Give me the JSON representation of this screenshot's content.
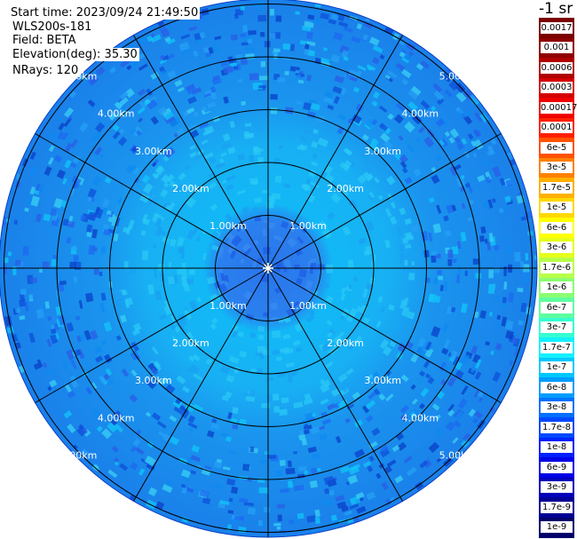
{
  "header": {
    "start_time": "Start time: 2023/09/24 21:49:50",
    "instrument": "WLS200s-181",
    "field": "Field: BETA",
    "elevation": "Elevation(deg): 35.30",
    "nrays": "NRays: 120"
  },
  "colorbar": {
    "unit": "-1 sr",
    "labels": [
      "0.0017",
      "0.001",
      "0.0006",
      "0.0003",
      "0.00017",
      "0.0001",
      "6e-5",
      "3e-5",
      "1.7e-5",
      "1e-5",
      "6e-6",
      "3e-6",
      "1.7e-6",
      "1e-6",
      "6e-7",
      "3e-7",
      "1.7e-7",
      "1e-7",
      "6e-8",
      "3e-8",
      "1.7e-8",
      "1e-8",
      "6e-9",
      "3e-9",
      "1.7e-9",
      "1e-9"
    ],
    "colors": [
      "#7a0000",
      "#8e0000",
      "#b00000",
      "#d40000",
      "#ee0000",
      "#ff2000",
      "#ff5200",
      "#ff8000",
      "#ffb000",
      "#ffd800",
      "#ffff00",
      "#e6ff1a",
      "#b8ff48",
      "#8cff73",
      "#5effa0",
      "#36ffd0",
      "#14f0ff",
      "#00c8ff",
      "#009cff",
      "#0070ff",
      "#0048ff",
      "#0020ff",
      "#0000e6",
      "#0000bc",
      "#000094",
      "#00006a"
    ]
  },
  "chart_data": {
    "type": "ppi_polar",
    "field": "BETA",
    "unit": "-1 sr",
    "elevation_deg": 35.3,
    "n_rays": 120,
    "range_rings_km": [
      1.0,
      2.0,
      3.0,
      4.0,
      5.0
    ],
    "ring_labels": [
      "1.00km",
      "2.00km",
      "3.00km",
      "4.00km",
      "5.00km"
    ],
    "max_range_km": 5.0,
    "azimuth_lines_deg": [
      0,
      30,
      60,
      90,
      120,
      150,
      180,
      210,
      240,
      270,
      300,
      330
    ],
    "colors": {
      "near": "#2a76ec",
      "mid": "#10b4f8",
      "far": "#1a86ea",
      "outer_mottle": "#0e4fd8",
      "ring_line": "#000000"
    }
  }
}
